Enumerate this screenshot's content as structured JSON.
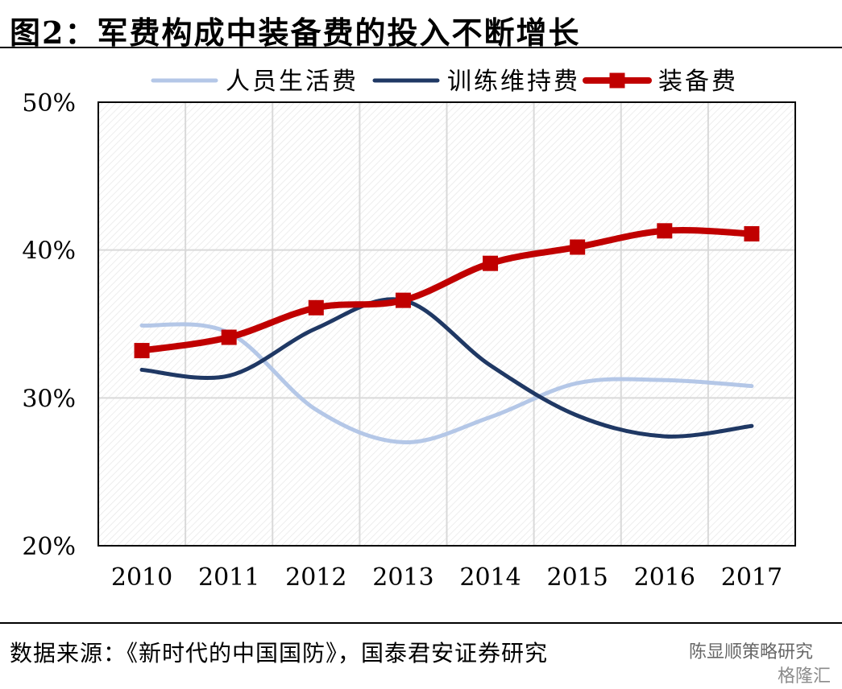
{
  "header": {
    "title": "图2：军费构成中装备费的投入不断增长"
  },
  "footer": {
    "source": "数据来源：《新时代的中国国防》，国泰君安证券研究",
    "watermark_primary": "陈显顺策略研究",
    "watermark_secondary": "格隆汇"
  },
  "chart_data": {
    "type": "line",
    "x": [
      "2010",
      "2011",
      "2012",
      "2013",
      "2014",
      "2015",
      "2016",
      "2017"
    ],
    "ylim": [
      20,
      50
    ],
    "y_ticks": [
      "20%",
      "30%",
      "40%",
      "50%"
    ],
    "y_tick_values": [
      20,
      30,
      40,
      50
    ],
    "grid": true,
    "legend": "top",
    "series": [
      {
        "name": "人员生活费",
        "color": "#b4c7e7",
        "marker": "none",
        "values": [
          34.9,
          34.4,
          29.2,
          27.0,
          28.7,
          31.0,
          31.2,
          30.8
        ]
      },
      {
        "name": "训练维持费",
        "color": "#1f3864",
        "marker": "none",
        "values": [
          31.9,
          31.5,
          34.7,
          36.6,
          32.2,
          28.8,
          27.4,
          28.1
        ]
      },
      {
        "name": "装备费",
        "color": "#c00000",
        "marker": "square",
        "values": [
          33.2,
          34.1,
          36.1,
          36.6,
          39.1,
          40.2,
          41.3,
          41.1
        ]
      }
    ]
  }
}
